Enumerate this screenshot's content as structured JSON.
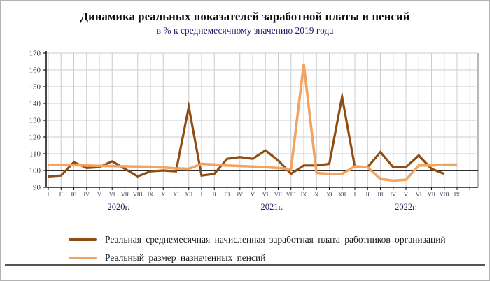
{
  "chart_data": {
    "type": "line",
    "title": "Динамика реальных показателей заработной платы и пенсий",
    "subtitle": "в % к среднемесячному значению 2019 года",
    "grid": true,
    "legend_position": "bottom-left",
    "reference_line": 100,
    "y_axis": {
      "min": 90,
      "max": 170,
      "step": 10
    },
    "x_groups": [
      {
        "year": "2020г.",
        "months": [
          "I",
          "II",
          "III",
          "IV",
          "V",
          "VI",
          "VII",
          "VIII",
          "IX",
          "X",
          "XI",
          "XII"
        ]
      },
      {
        "year": "2021г.",
        "months": [
          "I",
          "II",
          "III",
          "IV",
          "V",
          "VI",
          "VII",
          "VIII",
          "IX",
          "X",
          "XI",
          "XII"
        ]
      },
      {
        "year": "2022г.",
        "months": [
          "I",
          "II",
          "III",
          "IV",
          "V",
          "VI",
          "VII",
          "VIII",
          "IX"
        ]
      }
    ],
    "series": [
      {
        "name": "Реальная среднемесячная начисленная заработная плата работников организаций",
        "color": "#8E4D13",
        "values": [
          96.5,
          97,
          105,
          101.5,
          102,
          105.5,
          101,
          96.5,
          99.5,
          100,
          99.5,
          138,
          97,
          98,
          107,
          108,
          107,
          112,
          106,
          98,
          103,
          103,
          104,
          144,
          102,
          102,
          111,
          102,
          102,
          109,
          101,
          98,
          null
        ]
      },
      {
        "name": "Реальный размер назначенных пенсий",
        "color": "#F2A360",
        "values": [
          103.3,
          103.3,
          103.2,
          103,
          102.8,
          102.6,
          102.5,
          102.4,
          102.2,
          101.8,
          101.3,
          101,
          104,
          103.5,
          103,
          102.7,
          102.4,
          102,
          101.5,
          100.8,
          163.5,
          98.5,
          98,
          98,
          102.5,
          102,
          95,
          94,
          94.5,
          103,
          103,
          103.5,
          103.5
        ]
      }
    ]
  }
}
